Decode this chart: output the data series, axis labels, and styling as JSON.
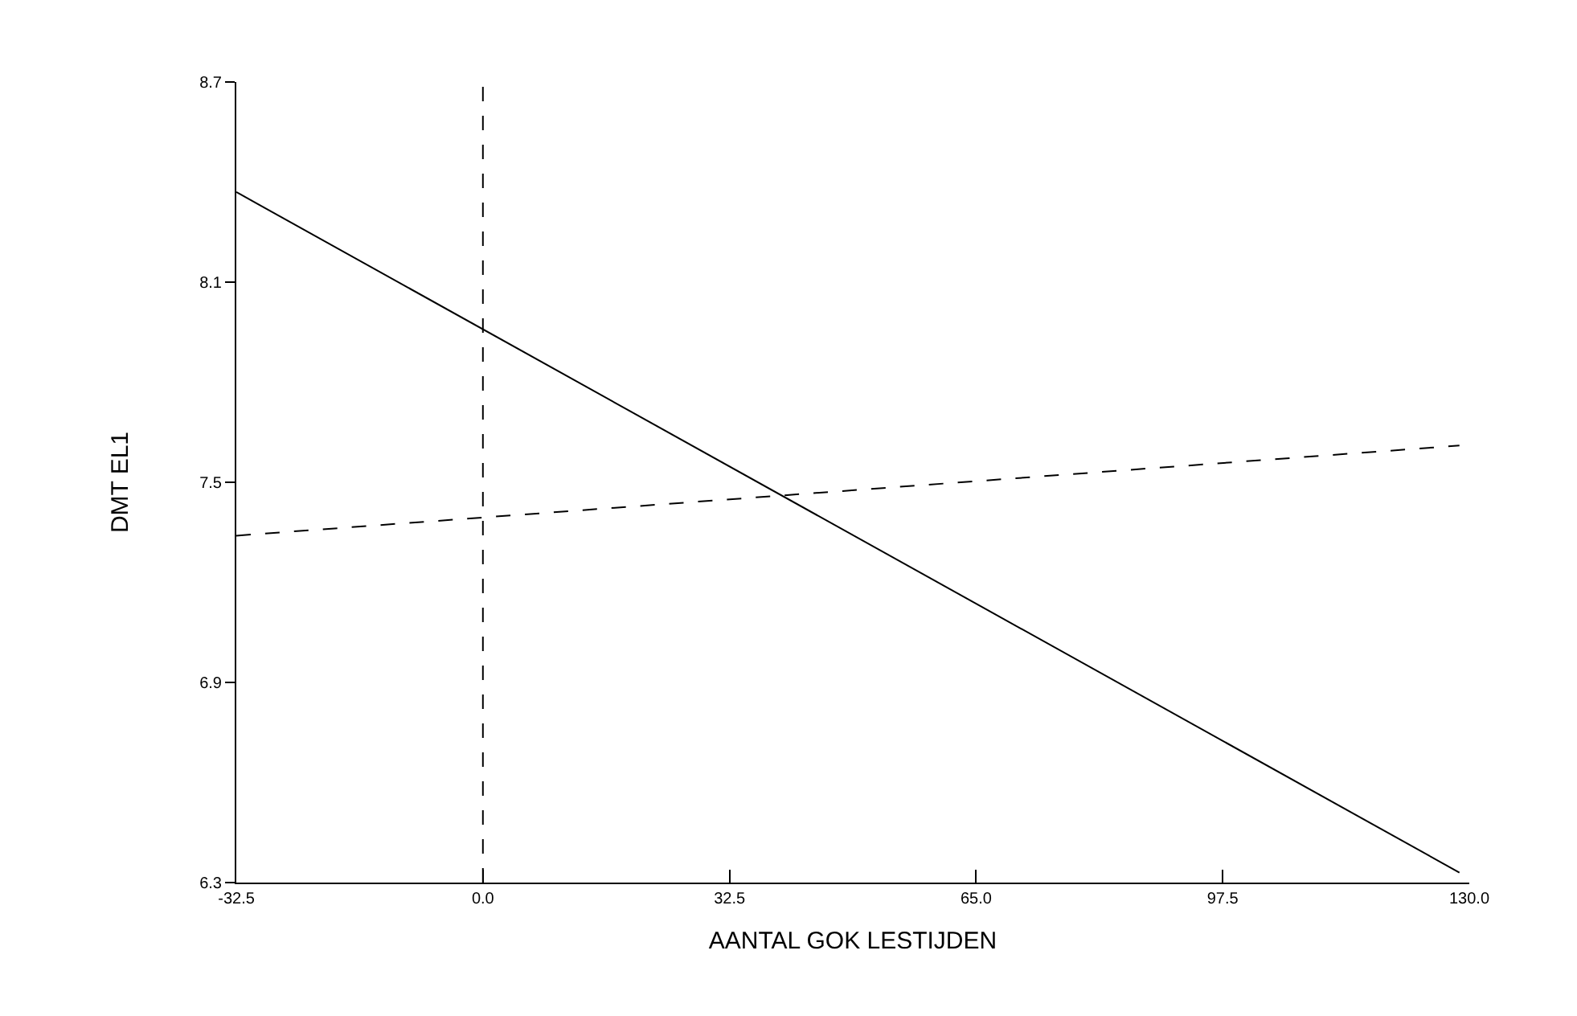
{
  "chart_data": {
    "type": "line",
    "xlabel": "AANTAL GOK LESTIJDEN",
    "ylabel": "DMT EL1",
    "x": [
      -32.5,
      128.7
    ],
    "series": [
      {
        "values": [
          8.37,
          6.33
        ],
        "color": "#000000",
        "line_style": "solid"
      },
      {
        "values": [
          7.34,
          7.61
        ],
        "color": "#000000",
        "line_style": "dashed"
      }
    ],
    "xlim": [
      -32.5,
      130
    ],
    "ylim": [
      6.3,
      8.7
    ],
    "xticks": [
      -32.5,
      {
        "value": 0,
        "label": "0.0"
      },
      32.5,
      {
        "value": 65,
        "label": "65.0"
      },
      97.5,
      {
        "value": 130,
        "label": "130.0"
      }
    ],
    "yticks": [
      6.3,
      6.9,
      7.5,
      8.1,
      8.7
    ],
    "ref_lines": [
      {
        "axis": "x",
        "value": 0,
        "label": null,
        "color": "#000000",
        "line_style": "dashed"
      }
    ],
    "legend": false,
    "marker": "none"
  }
}
